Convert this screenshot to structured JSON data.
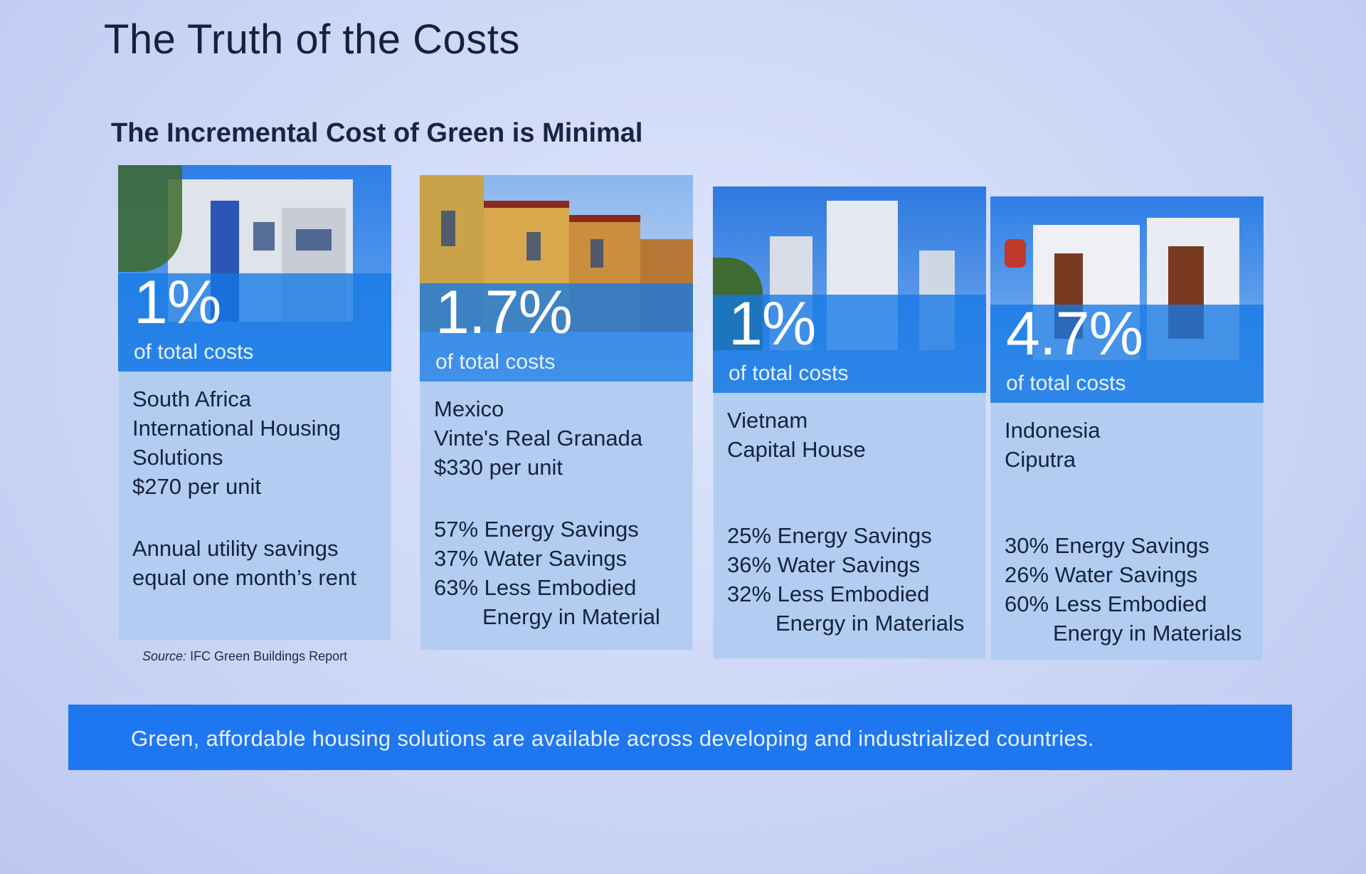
{
  "slide": {
    "title": "The Truth of the Costs",
    "subtitle": "The Incremental Cost of Green is Minimal",
    "source_label": "Source:",
    "source_text": "IFC Green Buildings Report",
    "banner": "Green, affordable housing solutions are available across developing and industrialized countries."
  },
  "cards": [
    {
      "pct": "1%",
      "pct_sub": "of total costs",
      "lines_a": [
        "South Africa",
        "International Housing",
        "Solutions",
        "$270 per unit"
      ],
      "lines_b": [
        "Annual utility savings",
        "equal one month’s rent"
      ]
    },
    {
      "pct": "1.7%",
      "pct_sub": "of total costs",
      "lines_a": [
        "Mexico",
        "Vinte's Real Granada",
        "$330 per unit"
      ],
      "lines_b": [
        "57% Energy Savings",
        "37% Water Savings",
        "63% Less Embodied"
      ],
      "indent": "Energy in Material"
    },
    {
      "pct": "1%",
      "pct_sub": "of total costs",
      "lines_a": [
        "Vietnam",
        "Capital House"
      ],
      "lines_b": [
        "25% Energy Savings",
        "36% Water Savings",
        "32% Less Embodied"
      ],
      "indent": "Energy in Materials"
    },
    {
      "pct": "4.7%",
      "pct_sub": "of total costs",
      "lines_a": [
        "Indonesia",
        "Ciputra"
      ],
      "lines_b": [
        "30% Energy Savings",
        "26% Water Savings",
        "60% Less Embodied"
      ],
      "indent": "Energy in Materials"
    }
  ]
}
